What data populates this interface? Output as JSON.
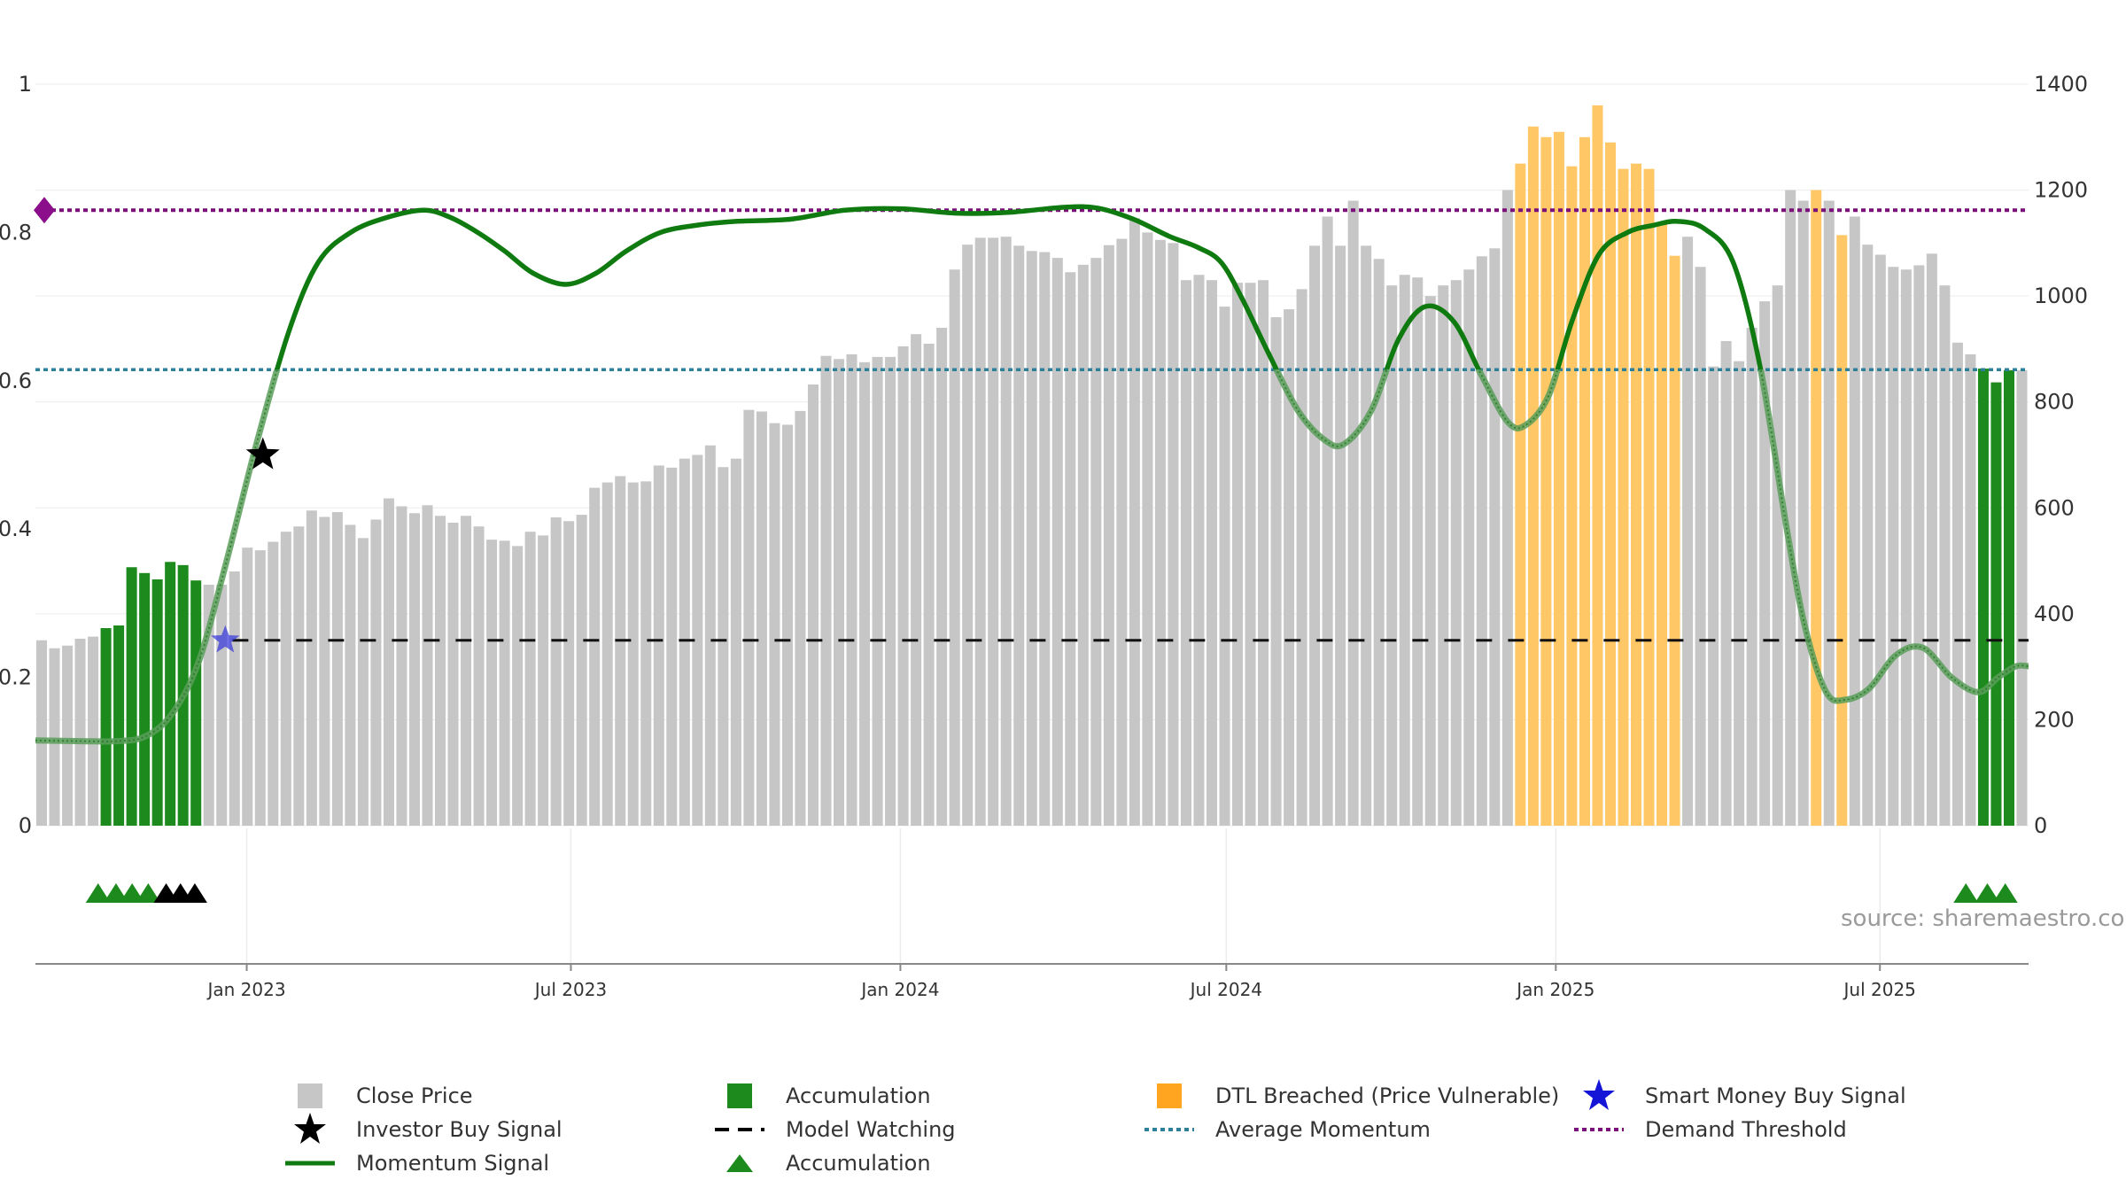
{
  "chart_data": {
    "type": "bar",
    "left_axis": {
      "range": [
        0,
        1
      ],
      "ticks": [
        0,
        0.2,
        0.4,
        0.6,
        0.8,
        1
      ],
      "tick_labels": [
        "0",
        "0.2",
        "0.4",
        "0.6",
        "0.8",
        "1"
      ]
    },
    "right_axis": {
      "range": [
        0,
        1400
      ],
      "ticks": [
        0,
        200,
        400,
        600,
        800,
        1000,
        1200,
        1400
      ],
      "tick_labels": [
        "0",
        "200",
        "400",
        "600",
        "800",
        "1000",
        "1200",
        "1400"
      ]
    },
    "x_axis": {
      "start_date": "2022-09-05",
      "end_date": "2025-09-22",
      "ticks": [
        {
          "date": "2023-01-01",
          "label": "Jan 2023"
        },
        {
          "date": "2023-07-01",
          "label": "Jul 2023"
        },
        {
          "date": "2024-01-01",
          "label": "Jan 2024"
        },
        {
          "date": "2024-07-01",
          "label": "Jul 2024"
        },
        {
          "date": "2025-01-01",
          "label": "Jan 2025"
        },
        {
          "date": "2025-07-01",
          "label": "Jul 2025"
        }
      ]
    },
    "price_series": {
      "name": "Close Price",
      "start_date": "2022-09-05",
      "interval_days": 7,
      "values": [
        350,
        335,
        340,
        353,
        357,
        373,
        378,
        488,
        477,
        465,
        498,
        492,
        463,
        455,
        455,
        480,
        525,
        520,
        536,
        555,
        565,
        595,
        583,
        592,
        568,
        543,
        578,
        618,
        603,
        590,
        605,
        585,
        572,
        585,
        565,
        540,
        538,
        528,
        555,
        548,
        582,
        575,
        587,
        638,
        648,
        660,
        648,
        650,
        680,
        676,
        693,
        700,
        718,
        677,
        693,
        785,
        782,
        760,
        757,
        783,
        833,
        887,
        881,
        890,
        875,
        885,
        885,
        905,
        928,
        910,
        940,
        1050,
        1097,
        1110,
        1110,
        1112,
        1095,
        1085,
        1083,
        1072,
        1045,
        1059,
        1072,
        1096,
        1108,
        1147,
        1120,
        1106,
        1100,
        1030,
        1040,
        1030,
        980,
        1025,
        1025,
        1030,
        960,
        975,
        1013,
        1095,
        1150,
        1095,
        1180,
        1095,
        1070,
        1020,
        1040,
        1035,
        1000,
        1020,
        1030,
        1050,
        1075,
        1090,
        1200,
        1250,
        1320,
        1300,
        1310,
        1245,
        1300,
        1360,
        1290,
        1240,
        1250,
        1240,
        1135,
        1076,
        1112,
        1055,
        867,
        915,
        877,
        940,
        990,
        1020,
        1200,
        1180,
        1200,
        1180,
        1115,
        1150,
        1097,
        1078,
        1055,
        1050,
        1058,
        1080,
        1020,
        912,
        890,
        863,
        837,
        860,
        860
      ]
    },
    "accumulation_bar_ranges": [
      [
        5,
        12
      ],
      [
        151,
        153
      ]
    ],
    "dtl_breached_bar_ranges": [
      [
        115,
        127
      ],
      [
        138,
        138
      ],
      [
        140,
        140
      ]
    ],
    "momentum_signal": {
      "name": "Momentum Signal",
      "points": [
        [
          "2022-09-05",
          0.115
        ],
        [
          "2022-10-01",
          0.114
        ],
        [
          "2022-10-20",
          0.114
        ],
        [
          "2022-11-05",
          0.12
        ],
        [
          "2022-11-20",
          0.15
        ],
        [
          "2022-12-05",
          0.22
        ],
        [
          "2022-12-20",
          0.35
        ],
        [
          "2023-01-07",
          0.52
        ],
        [
          "2023-01-25",
          0.67
        ],
        [
          "2023-02-10",
          0.76
        ],
        [
          "2023-02-28",
          0.8
        ],
        [
          "2023-03-20",
          0.82
        ],
        [
          "2023-04-10",
          0.83
        ],
        [
          "2023-04-25",
          0.82
        ],
        [
          "2023-05-10",
          0.8
        ],
        [
          "2023-05-25",
          0.775
        ],
        [
          "2023-06-10",
          0.745
        ],
        [
          "2023-06-28",
          0.73
        ],
        [
          "2023-07-15",
          0.745
        ],
        [
          "2023-08-01",
          0.775
        ],
        [
          "2023-08-20",
          0.8
        ],
        [
          "2023-09-10",
          0.81
        ],
        [
          "2023-10-01",
          0.815
        ],
        [
          "2023-11-01",
          0.818
        ],
        [
          "2023-12-01",
          0.83
        ],
        [
          "2024-01-01",
          0.832
        ],
        [
          "2024-02-01",
          0.826
        ],
        [
          "2024-03-01",
          0.827
        ],
        [
          "2024-04-01",
          0.834
        ],
        [
          "2024-04-20",
          0.833
        ],
        [
          "2024-05-10",
          0.818
        ],
        [
          "2024-05-30",
          0.795
        ],
        [
          "2024-06-15",
          0.78
        ],
        [
          "2024-06-28",
          0.76
        ],
        [
          "2024-07-10",
          0.71
        ],
        [
          "2024-07-25",
          0.635
        ],
        [
          "2024-08-10",
          0.56
        ],
        [
          "2024-08-25",
          0.52
        ],
        [
          "2024-09-05",
          0.515
        ],
        [
          "2024-09-20",
          0.56
        ],
        [
          "2024-10-05",
          0.655
        ],
        [
          "2024-10-20",
          0.7
        ],
        [
          "2024-11-05",
          0.68
        ],
        [
          "2024-11-20",
          0.61
        ],
        [
          "2024-12-05",
          0.545
        ],
        [
          "2024-12-15",
          0.54
        ],
        [
          "2024-12-28",
          0.58
        ],
        [
          "2025-01-10",
          0.68
        ],
        [
          "2025-01-25",
          0.77
        ],
        [
          "2025-02-10",
          0.8
        ],
        [
          "2025-02-25",
          0.81
        ],
        [
          "2025-03-10",
          0.815
        ],
        [
          "2025-03-25",
          0.805
        ],
        [
          "2025-04-10",
          0.76
        ],
        [
          "2025-04-25",
          0.62
        ],
        [
          "2025-05-10",
          0.4
        ],
        [
          "2025-05-20",
          0.27
        ],
        [
          "2025-06-01",
          0.18
        ],
        [
          "2025-06-12",
          0.17
        ],
        [
          "2025-06-25",
          0.185
        ],
        [
          "2025-07-10",
          0.23
        ],
        [
          "2025-07-25",
          0.24
        ],
        [
          "2025-08-10",
          0.2
        ],
        [
          "2025-08-25",
          0.18
        ],
        [
          "2025-09-05",
          0.2
        ],
        [
          "2025-09-15",
          0.215
        ],
        [
          "2025-09-22",
          0.215
        ]
      ]
    },
    "model_watching": {
      "name": "Model Watching",
      "from_date": "2022-12-24",
      "value": 0.25
    },
    "average_momentum": {
      "name": "Average Momentum",
      "value": 0.615
    },
    "demand_threshold": {
      "name": "Demand Threshold",
      "value": 0.83
    },
    "smart_money_buy_signal": {
      "name": "Smart Money Buy Signal",
      "date": "2022-12-20",
      "value": 0.25
    },
    "investor_buy_signal": {
      "name": "Investor Buy Signal",
      "date": "2023-01-10",
      "value": 0.5
    },
    "accumulation_triangles": [
      {
        "date": "2022-10-10",
        "color": "#1d8a1d"
      },
      {
        "date": "2022-10-20",
        "color": "#1d8a1d"
      },
      {
        "date": "2022-10-29",
        "color": "#1d8a1d"
      },
      {
        "date": "2022-11-07",
        "color": "#1d8a1d"
      },
      {
        "date": "2022-11-17",
        "color": "#000000"
      },
      {
        "date": "2022-11-25",
        "color": "#000000"
      },
      {
        "date": "2022-12-03",
        "color": "#000000"
      },
      {
        "date": "2025-08-18",
        "color": "#1d8a1d"
      },
      {
        "date": "2025-08-30",
        "color": "#1d8a1d"
      },
      {
        "date": "2025-09-09",
        "color": "#1d8a1d"
      }
    ],
    "colors": {
      "close_price": "#c6c6c6",
      "accumulation": "#1d8a1d",
      "dtl_breached": "#ffc766",
      "momentum": "#0f7a0f",
      "momentum_weak": "#5b9e5b",
      "average_momentum": "#2d7f9a",
      "demand_threshold": "#7a0f7a",
      "smart_money": "#3333dd",
      "investor": "#000000"
    },
    "source": "source: sharemaestro.com"
  },
  "legend": {
    "close_price": "Close Price",
    "accumulation_bar": "Accumulation",
    "dtl_breached": "DTL Breached (Price Vulnerable)",
    "smart_money": "Smart Money Buy Signal",
    "investor_buy": "Investor Buy Signal",
    "model_watching": "Model Watching",
    "average_momentum": "Average Momentum",
    "demand_threshold": "Demand Threshold",
    "momentum_signal": "Momentum Signal",
    "accumulation_triangle": "Accumulation"
  }
}
